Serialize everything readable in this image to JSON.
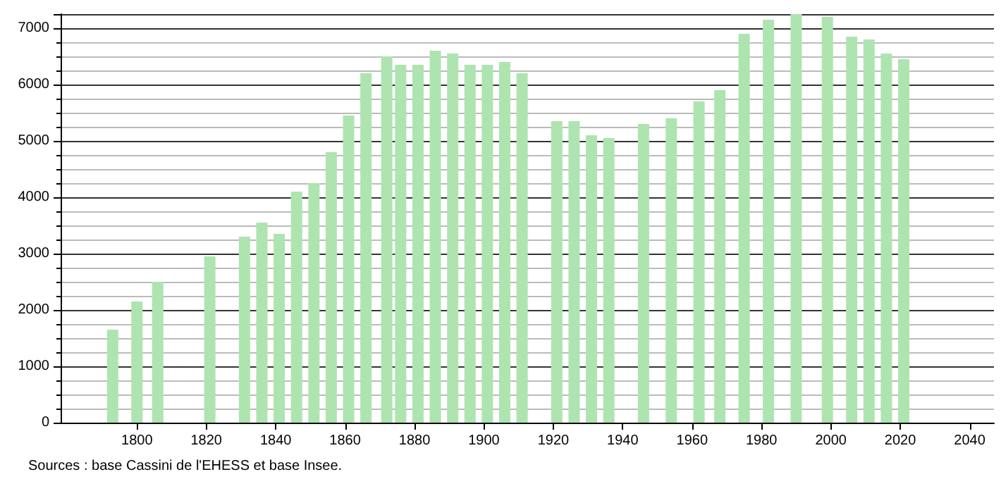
{
  "chart_data": {
    "type": "bar",
    "x": [
      1793,
      1800,
      1806,
      1821,
      1831,
      1836,
      1841,
      1846,
      1851,
      1856,
      1861,
      1866,
      1872,
      1876,
      1881,
      1886,
      1891,
      1896,
      1901,
      1906,
      1911,
      1921,
      1926,
      1931,
      1936,
      1946,
      1954,
      1962,
      1968,
      1975,
      1982,
      1990,
      1999,
      2006,
      2011,
      2016,
      2021
    ],
    "values": [
      1650,
      2150,
      2500,
      2950,
      3300,
      3550,
      3350,
      4100,
      4250,
      4800,
      5450,
      6200,
      6500,
      6350,
      6350,
      6600,
      6550,
      6350,
      6350,
      6400,
      6200,
      5350,
      5350,
      5100,
      5050,
      5300,
      5400,
      5700,
      5900,
      6900,
      7150,
      7250,
      7200,
      6850,
      6800,
      6550,
      6450
    ],
    "color": "#aee4b0",
    "xlim": [
      1778,
      2047
    ],
    "xticks": [
      1800,
      1820,
      1840,
      1860,
      1880,
      1900,
      1920,
      1940,
      1960,
      1980,
      2000,
      2020,
      2040
    ],
    "ylim": [
      0,
      7250
    ],
    "yticks": [
      0,
      1000,
      2000,
      3000,
      4000,
      5000,
      6000,
      7000
    ],
    "grid": "y",
    "annotations": [
      "Sources : base Cassini de l'EHESS et base Insee."
    ]
  }
}
